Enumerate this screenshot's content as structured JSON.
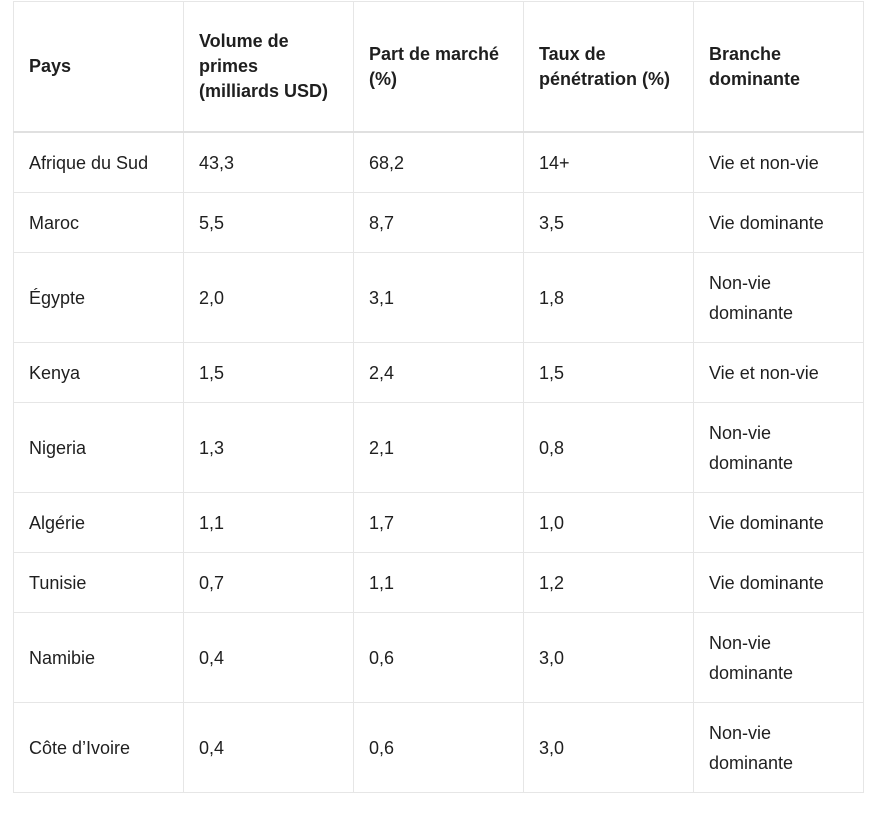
{
  "table": {
    "headers": [
      "Pays",
      "Volume de primes (milliards USD)",
      "Part de marché (%)",
      "Taux de pénétration (%)",
      "Branche dominante"
    ],
    "rows": [
      [
        "Afrique du Sud",
        "43,3",
        "68,2",
        "14+",
        "Vie et non-vie"
      ],
      [
        "Maroc",
        "5,5",
        "8,7",
        "3,5",
        "Vie dominante"
      ],
      [
        "Égypte",
        "2,0",
        "3,1",
        "1,8",
        "Non-vie dominante"
      ],
      [
        "Kenya",
        "1,5",
        "2,4",
        "1,5",
        "Vie et non-vie"
      ],
      [
        "Nigeria",
        "1,3",
        "2,1",
        "0,8",
        "Non-vie dominante"
      ],
      [
        "Algérie",
        "1,1",
        "1,7",
        "1,0",
        "Vie dominante"
      ],
      [
        "Tunisie",
        "0,7",
        "1,1",
        "1,2",
        "Vie dominante"
      ],
      [
        "Namibie",
        "0,4",
        "0,6",
        "3,0",
        "Non-vie dominante"
      ],
      [
        "Côte d’Ivoire",
        "0,4",
        "0,6",
        "3,0",
        "Non-vie dominante"
      ]
    ]
  }
}
